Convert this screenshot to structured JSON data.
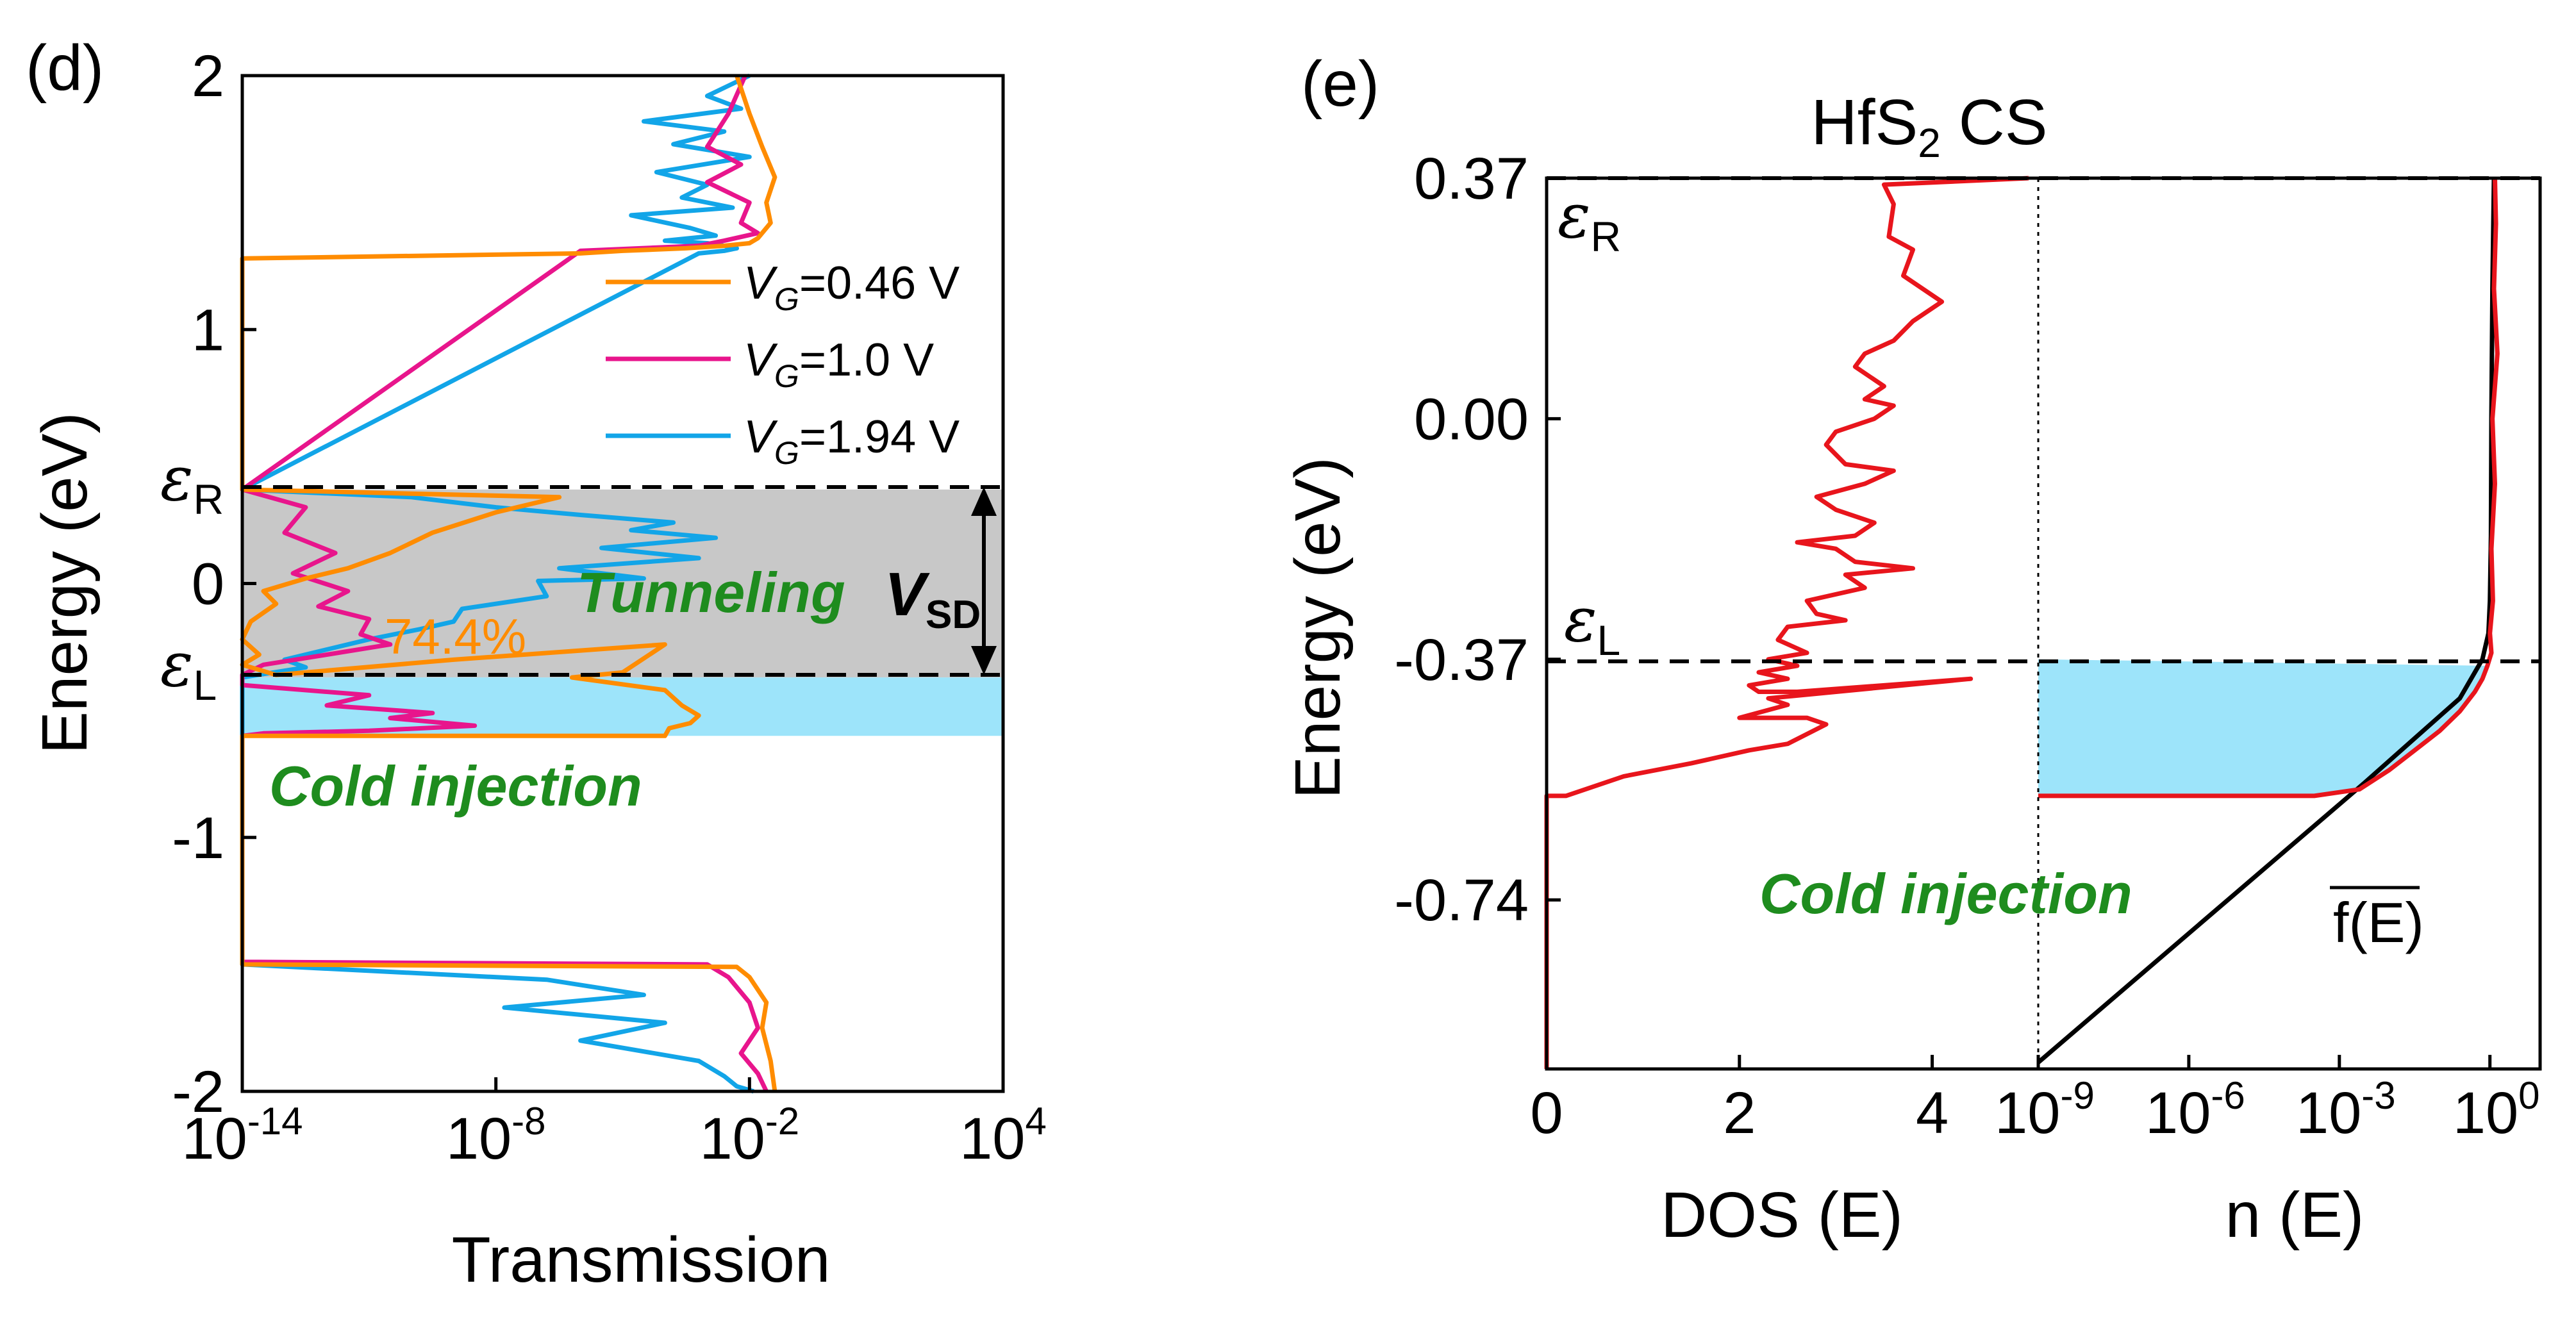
{
  "chart_data": [
    {
      "panel": "(d)",
      "type": "line",
      "xscale": "log",
      "xlabel": "Transmission",
      "ylabel": "Energy (eV)",
      "ylim": [
        -2,
        2
      ],
      "xlim_exp": [
        -14,
        4
      ],
      "yticks": [
        "2",
        "1",
        "0",
        "-1",
        "-2"
      ],
      "xticks": [
        {
          "base": "10",
          "exp": "-14"
        },
        {
          "base": "10",
          "exp": "-8"
        },
        {
          "base": "10",
          "exp": "-2"
        },
        {
          "base": "10",
          "exp": "4"
        }
      ],
      "legend": {
        "placement": "middle-right",
        "entries": [
          {
            "prefix": "V",
            "sub": "G",
            "suffix": "=0.46 V",
            "color": "#ff8c00"
          },
          {
            "prefix": "V",
            "sub": "G",
            "suffix": "=1.0 V",
            "color": "#e8158c"
          },
          {
            "prefix": "V",
            "sub": "G",
            "suffix": "=1.94 V",
            "color": "#12a5e8"
          }
        ]
      },
      "labels": {
        "epsR": {
          "main": "ε",
          "sub": "R"
        },
        "epsL": {
          "main": "ε",
          "sub": "L"
        },
        "tunneling": "Tunneling",
        "vsd": {
          "main": "V",
          "sub": "SD"
        },
        "percent": "74.4%",
        "cold": "Cold injection"
      },
      "regions": [
        {
          "name": "tunneling window",
          "ymin": -0.37,
          "ymax": 0.37,
          "color": "#c8c8c8"
        },
        {
          "name": "cold injection",
          "ymin": -0.6,
          "ymax": -0.37,
          "color": "#9de4fa"
        }
      ],
      "series": [
        {
          "name": "VG=0.46 V",
          "color": "#ff8c00",
          "x_log10": [
            -2.3,
            -2.0,
            -1.7,
            -1.4,
            -1.6,
            -1.5,
            -1.8,
            -2.0,
            -2.6,
            -3.5,
            -5.0,
            -6.0,
            -14.0,
            -14.0,
            -6.5,
            -8.0,
            -9.5,
            -10.5,
            -11.5,
            -12.5,
            -13.5,
            -13.2,
            -13.8,
            -14.0,
            -13.6,
            -14.0,
            -13.2,
            -9.0,
            -4.0,
            -5.0,
            -6.2,
            -4.0,
            -3.8,
            -3.6,
            -3.2,
            -3.4,
            -3.9,
            -4.0,
            -4.2,
            -5.0,
            -8.0,
            -14.0,
            -14.0,
            -2.3,
            -2.0,
            -1.6,
            -1.7,
            -1.5,
            -1.4
          ],
          "y": [
            2.0,
            1.85,
            1.72,
            1.6,
            1.5,
            1.42,
            1.36,
            1.34,
            1.33,
            1.32,
            1.31,
            1.3,
            1.28,
            0.37,
            0.34,
            0.28,
            0.2,
            0.12,
            0.06,
            0.02,
            -0.03,
            -0.08,
            -0.15,
            -0.22,
            -0.28,
            -0.32,
            -0.36,
            -0.3,
            -0.24,
            -0.35,
            -0.37,
            -0.42,
            -0.45,
            -0.48,
            -0.52,
            -0.55,
            -0.57,
            -0.6,
            -0.6,
            -0.6,
            -0.6,
            -0.6,
            -1.5,
            -1.51,
            -1.55,
            -1.65,
            -1.75,
            -1.88,
            -2.0
          ]
        },
        {
          "name": "VG=1.0 V",
          "color": "#e8158c",
          "x_log10": [
            -2.1,
            -2.5,
            -3.0,
            -2.2,
            -3.0,
            -2.0,
            -2.2,
            -1.8,
            -2.6,
            -3.2,
            -6.0,
            -14.0,
            -12.5,
            -13.0,
            -11.8,
            -12.8,
            -11.5,
            -12.2,
            -11.0,
            -11.2,
            -10.5,
            -12.0,
            -13.5,
            -14.0,
            -14.0,
            -11.0,
            -12.0,
            -9.5,
            -10.5,
            -8.5,
            -11.0,
            -13.5,
            -14.0,
            -14.0,
            -3.0,
            -2.5,
            -2.0,
            -1.8,
            -2.2,
            -1.8,
            -1.6
          ],
          "y": [
            2.0,
            1.85,
            1.72,
            1.65,
            1.58,
            1.5,
            1.42,
            1.38,
            1.35,
            1.33,
            1.31,
            0.37,
            0.3,
            0.2,
            0.12,
            0.04,
            -0.03,
            -0.09,
            -0.14,
            -0.2,
            -0.24,
            -0.28,
            -0.32,
            -0.36,
            -0.4,
            -0.44,
            -0.48,
            -0.51,
            -0.53,
            -0.56,
            -0.58,
            -0.59,
            -0.6,
            -1.49,
            -1.5,
            -1.55,
            -1.65,
            -1.75,
            -1.85,
            -1.93,
            -2.0
          ]
        },
        {
          "name": "VG=1.94 V",
          "color": "#12a5e8",
          "x_log10": [
            -2.0,
            -3.0,
            -2.2,
            -4.5,
            -2.6,
            -3.8,
            -2.0,
            -4.2,
            -3.0,
            -3.6,
            -2.4,
            -4.8,
            -3.4,
            -2.8,
            -4.0,
            -3.0,
            -2.6,
            -2.3,
            -2.6,
            -3.2,
            -14.0,
            -10.0,
            -8.0,
            -6.0,
            -3.8,
            -4.8,
            -2.8,
            -5.5,
            -3.2,
            -6.5,
            -4.5,
            -7.0,
            -6.8,
            -8.8,
            -9.0,
            -9.8,
            -11.0,
            -12.0,
            -13.0,
            -12.5,
            -14.0,
            -14.0,
            -6.8,
            -4.5,
            -7.8,
            -4.0,
            -6.0,
            -3.2,
            -2.6,
            -2.3,
            -1.9
          ],
          "y": [
            2.0,
            1.92,
            1.87,
            1.82,
            1.78,
            1.73,
            1.68,
            1.62,
            1.57,
            1.52,
            1.48,
            1.45,
            1.4,
            1.37,
            1.35,
            1.34,
            1.33,
            1.32,
            1.31,
            1.3,
            0.37,
            0.34,
            0.3,
            0.27,
            0.24,
            0.21,
            0.18,
            0.14,
            0.1,
            0.06,
            0.02,
            0.01,
            -0.05,
            -0.1,
            -0.15,
            -0.18,
            -0.22,
            -0.26,
            -0.3,
            -0.33,
            -0.37,
            -1.5,
            -1.56,
            -1.62,
            -1.67,
            -1.73,
            -1.8,
            -1.88,
            -1.94,
            -1.98,
            -2.0
          ]
        }
      ]
    },
    {
      "panel": "(e)",
      "type": "line",
      "title": {
        "pre": "HfS",
        "sub": "2",
        "post": " CS"
      },
      "ylabel": "Energy (eV)",
      "ylim": [
        -1.0,
        0.37
      ],
      "yticks": [
        "0.37",
        "0.00",
        "-0.37",
        "-0.74"
      ],
      "left": {
        "xlabel": "DOS (E)",
        "xlim": [
          0,
          5.1
        ],
        "xticks": [
          "0",
          "2",
          "4"
        ],
        "series": {
          "name": "DOS",
          "color": "#e8151c",
          "x": [
            5.0,
            3.5,
            3.6,
            3.55,
            3.8,
            3.7,
            4.1,
            3.8,
            3.6,
            3.3,
            3.2,
            3.5,
            3.3,
            3.6,
            3.4,
            3.0,
            2.9,
            3.1,
            3.6,
            3.3,
            2.8,
            3.0,
            3.4,
            3.2,
            2.6,
            3.0,
            3.2,
            3.8,
            3.1,
            3.3,
            2.7,
            2.8,
            3.1,
            2.5,
            2.4,
            2.7,
            2.3,
            2.6,
            2.2,
            2.5,
            2.1,
            2.2,
            2.6,
            4.4,
            2.3,
            2.5,
            2.0,
            2.7,
            2.9,
            2.5,
            2.1,
            1.5,
            0.8,
            0.2,
            0.0,
            0.0
          ],
          "y": [
            0.37,
            0.36,
            0.33,
            0.28,
            0.26,
            0.22,
            0.18,
            0.15,
            0.12,
            0.1,
            0.08,
            0.05,
            0.03,
            0.02,
            0.0,
            -0.02,
            -0.04,
            -0.07,
            -0.08,
            -0.1,
            -0.12,
            -0.14,
            -0.16,
            -0.18,
            -0.19,
            -0.2,
            -0.22,
            -0.23,
            -0.24,
            -0.26,
            -0.28,
            -0.3,
            -0.31,
            -0.32,
            -0.34,
            -0.36,
            -0.37,
            -0.38,
            -0.39,
            -0.4,
            -0.41,
            -0.42,
            -0.42,
            -0.4,
            -0.43,
            -0.44,
            -0.46,
            -0.46,
            -0.47,
            -0.5,
            -0.51,
            -0.53,
            -0.55,
            -0.58,
            -0.58,
            -1.0
          ]
        }
      },
      "right": {
        "xlabel": "n (E)",
        "xscale": "log",
        "xlim_exp": [
          -9,
          1
        ],
        "xticks": [
          {
            "base": "10",
            "exp": "-9"
          },
          {
            "base": "10",
            "exp": "-6"
          },
          {
            "base": "10",
            "exp": "-3"
          },
          {
            "base": "10",
            "exp": "0"
          }
        ],
        "fE": {
          "label": "f(E)",
          "color": "#000000",
          "x_log10": [
            -9.0,
            -2.5,
            -0.6,
            -0.3,
            -0.15,
            -0.03,
            0.0,
            0.02,
            0.03,
            0.05,
            0.08
          ],
          "y": [
            -0.99,
            -0.56,
            -0.43,
            -0.39,
            -0.37,
            -0.33,
            -0.28,
            -0.18,
            0.0,
            0.2,
            0.37
          ]
        },
        "nE": {
          "name": "n(E)",
          "color": "#e8151c",
          "x_log10": [
            0.1,
            0.12,
            0.08,
            0.15,
            0.05,
            0.1,
            0.03,
            0.06,
            0.0,
            0.03,
            -0.05,
            -0.15,
            -0.3,
            -0.6,
            -1.0,
            -1.5,
            -2.0,
            -2.6,
            -3.5,
            -6.0,
            -9.0
          ],
          "y": [
            0.37,
            0.3,
            0.2,
            0.1,
            0.0,
            -0.1,
            -0.2,
            -0.28,
            -0.33,
            -0.36,
            -0.38,
            -0.4,
            -0.42,
            -0.45,
            -0.48,
            -0.51,
            -0.54,
            -0.57,
            -0.58,
            -0.58,
            -0.58
          ]
        },
        "fill": {
          "color": "#9de4fa"
        }
      },
      "labels": {
        "epsR": {
          "main": "ε",
          "sub": "R"
        },
        "epsL": {
          "main": "ε",
          "sub": "L"
        },
        "cold": "Cold injection"
      }
    }
  ]
}
